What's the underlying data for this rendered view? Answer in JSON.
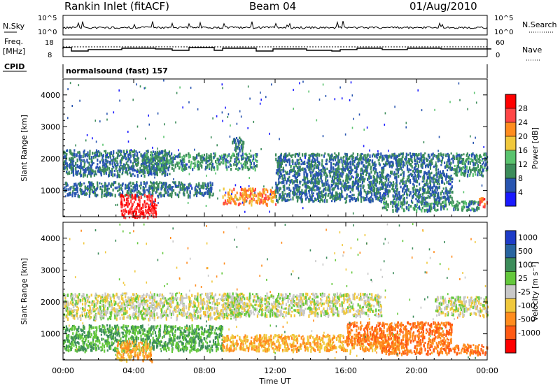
{
  "header": {
    "station": "Rankin Inlet (fitACF)",
    "beam": "Beam 04",
    "date": "01/Aug/2010"
  },
  "panels": {
    "nsky": {
      "left_label": "N.Sky",
      "left_ticks": [
        "10^5",
        "10^0"
      ],
      "right_ticks": [
        "10^5",
        "10^0"
      ],
      "right_label": "N.Search"
    },
    "freq": {
      "left_label_1": "Freq.",
      "left_label_2": "[MHz]",
      "left_ticks": [
        "18",
        "8"
      ],
      "right_ticks": [
        "60",
        "0"
      ],
      "right_label": "Nave"
    },
    "cpid": {
      "label": "CPID",
      "text": "normalsound (fast) 157"
    }
  },
  "axes": {
    "ylabel": "Slant Range [km]",
    "xlabel": "Time UT",
    "range_ticks": [
      "1000",
      "2000",
      "3000",
      "4000"
    ],
    "time_ticks": [
      "00:00",
      "04:00",
      "08:00",
      "12:00",
      "16:00",
      "20:00",
      "00:00"
    ]
  },
  "colorbars": {
    "power": {
      "label": "Power [dB]",
      "ticks": [
        "4",
        "8",
        "12",
        "16",
        "20",
        "24",
        "28"
      ],
      "colors": [
        "#1a1aff",
        "#2855b0",
        "#3c8c5a",
        "#5ac36e",
        "#f0c83c",
        "#ff8c1e",
        "#ff4646",
        "#ff0000"
      ]
    },
    "velocity": {
      "label": "Velocity [m s⁻¹]",
      "ticks": [
        "1000",
        "500",
        "100",
        "25",
        "-25",
        "-100",
        "-500",
        "-1000"
      ],
      "colors": [
        "#1e3cc8",
        "#2864a0",
        "#3c8c5a",
        "#64c83c",
        "#c8c8c8",
        "#f0c83c",
        "#ff8c1e",
        "#ff5a14",
        "#ff0000"
      ]
    }
  },
  "chart_data": {
    "type": "heatmap",
    "title": "Rankin Inlet (fitACF)",
    "subtitle": "Beam 04",
    "xlabel": "Time UT",
    "ylabel": "Slant Range [km]",
    "xlim": [
      "00:00",
      "24:00"
    ],
    "ylim": [
      180,
      4500
    ],
    "x_ticks": [
      "00:00",
      "04:00",
      "08:00",
      "12:00",
      "16:00",
      "20:00",
      "00:00"
    ],
    "y_ticks": [
      1000,
      2000,
      3000,
      4000
    ],
    "power_panel": {
      "quantity": "Power [dB]",
      "color_scale": [
        0,
        30
      ],
      "features": [
        {
          "time_start_h": 0.0,
          "time_end_h": 8.5,
          "range_km": [
            850,
            1300
          ],
          "power_db": 8
        },
        {
          "time_start_h": 0.0,
          "time_end_h": 6.0,
          "range_km": [
            1500,
            2300
          ],
          "power_db": 8
        },
        {
          "time_start_h": 3.2,
          "time_end_h": 5.3,
          "range_km": [
            180,
            900
          ],
          "power_db": 28
        },
        {
          "time_start_h": 4.5,
          "time_end_h": 11.0,
          "range_km": [
            1700,
            2200
          ],
          "power_db": 10
        },
        {
          "time_start_h": 9.0,
          "time_end_h": 12.0,
          "range_km": [
            600,
            1100
          ],
          "power_db": 22
        },
        {
          "time_start_h": 9.5,
          "time_end_h": 10.2,
          "range_km": [
            2300,
            2700
          ],
          "power_db": 8
        },
        {
          "time_start_h": 12.0,
          "time_end_h": 22.0,
          "range_km": [
            700,
            2200
          ],
          "power_db": 8
        },
        {
          "time_start_h": 18.0,
          "time_end_h": 23.5,
          "range_km": [
            400,
            700
          ],
          "power_db": 10
        },
        {
          "time_start_h": 22.0,
          "time_end_h": 24.0,
          "range_km": [
            1500,
            2200
          ],
          "power_db": 10
        },
        {
          "time_start_h": 23.5,
          "time_end_h": 24.0,
          "range_km": [
            500,
            800
          ],
          "power_db": 26
        }
      ]
    },
    "velocity_panel": {
      "quantity": "Velocity [m s-1]",
      "color_scale": [
        -1000,
        1000
      ],
      "features": [
        {
          "time_start_h": 0.0,
          "time_end_h": 10.0,
          "range_km": [
            1500,
            2300
          ],
          "velocity_ms": 0
        },
        {
          "time_start_h": 0.0,
          "time_end_h": 9.0,
          "range_km": [
            500,
            1300
          ],
          "velocity_ms": 100
        },
        {
          "time_start_h": 3.0,
          "time_end_h": 5.0,
          "range_km": [
            180,
            800
          ],
          "velocity_ms": -100
        },
        {
          "time_start_h": 9.0,
          "time_end_h": 18.0,
          "range_km": [
            1600,
            2300
          ],
          "velocity_ms": 0
        },
        {
          "time_start_h": 9.0,
          "time_end_h": 19.0,
          "range_km": [
            500,
            1000
          ],
          "velocity_ms": -100
        },
        {
          "time_start_h": 16.0,
          "time_end_h": 22.0,
          "range_km": [
            700,
            1400
          ],
          "velocity_ms": -500
        },
        {
          "time_start_h": 18.0,
          "time_end_h": 24.0,
          "range_km": [
            400,
            700
          ],
          "velocity_ms": -500
        },
        {
          "time_start_h": 21.0,
          "time_end_h": 24.0,
          "range_km": [
            1600,
            2200
          ],
          "velocity_ms": 0
        }
      ]
    }
  }
}
